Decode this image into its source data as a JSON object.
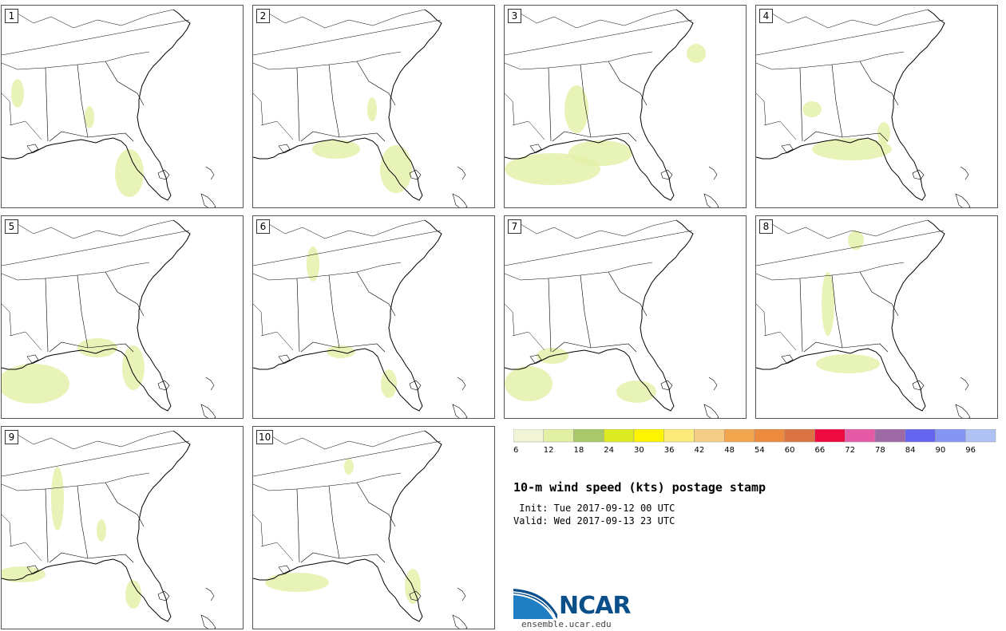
{
  "panels": [
    {
      "label": "1"
    },
    {
      "label": "2"
    },
    {
      "label": "3"
    },
    {
      "label": "4"
    },
    {
      "label": "5"
    },
    {
      "label": "6"
    },
    {
      "label": "7"
    },
    {
      "label": "8"
    },
    {
      "label": "9"
    },
    {
      "label": "10"
    }
  ],
  "colorbar": {
    "ticks": [
      "6",
      "12",
      "18",
      "24",
      "30",
      "36",
      "42",
      "48",
      "54",
      "60",
      "66",
      "72",
      "78",
      "84",
      "90",
      "96"
    ],
    "colors": [
      "#f2f4d6",
      "#e2f0a6",
      "#a8c86a",
      "#dcea24",
      "#fcf400",
      "#fceb7a",
      "#f6cd86",
      "#f1a64e",
      "#ec8a3e",
      "#db7442",
      "#ee0a3e",
      "#e55aa6",
      "#9e6aa6",
      "#6464ee",
      "#8496f2",
      "#b0c2f4"
    ]
  },
  "title": "10-m wind speed (kts) postage stamp",
  "init_text": " Init: Tue 2017-09-12 00 UTC",
  "valid_text": "Valid: Wed 2017-09-13 23 UTC",
  "logo": {
    "name": "NCAR",
    "url": "ensemble.ucar.edu"
  }
}
